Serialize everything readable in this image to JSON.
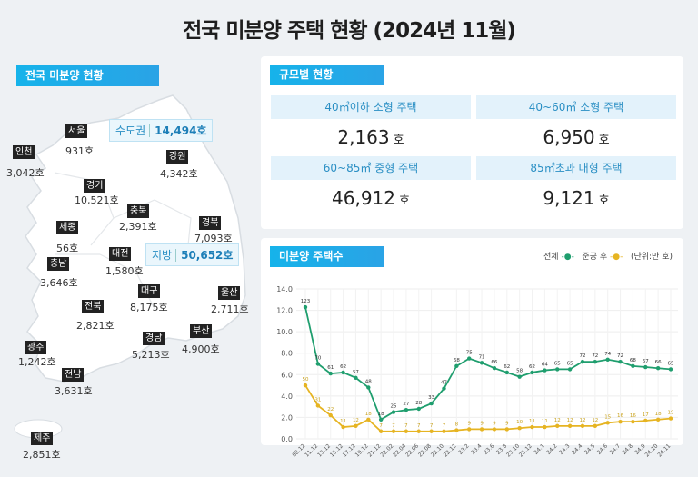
{
  "title": "전국 미분양 주택 현황 (2024년 11월)",
  "map_section": {
    "label": "전국 미분양 현황",
    "capital": {
      "name": "수도권",
      "value": "14,494호"
    },
    "regional": {
      "name": "지방",
      "value": "50,652호"
    },
    "regions": [
      {
        "name": "서울",
        "value": "931호"
      },
      {
        "name": "인천",
        "value": "3,042호"
      },
      {
        "name": "경기",
        "value": "10,521호"
      },
      {
        "name": "강원",
        "value": "4,342호"
      },
      {
        "name": "충북",
        "value": "2,391호"
      },
      {
        "name": "경북",
        "value": "7,093호"
      },
      {
        "name": "세종",
        "value": "56호"
      },
      {
        "name": "대전",
        "value": "1,580호"
      },
      {
        "name": "충남",
        "value": "3,646호"
      },
      {
        "name": "대구",
        "value": "8,175호"
      },
      {
        "name": "울산",
        "value": "2,711호"
      },
      {
        "name": "전북",
        "value": "2,821호"
      },
      {
        "name": "광주",
        "value": "1,242호"
      },
      {
        "name": "경남",
        "value": "5,213호"
      },
      {
        "name": "부산",
        "value": "4,900호"
      },
      {
        "name": "전남",
        "value": "3,631호"
      },
      {
        "name": "제주",
        "value": "2,851호"
      }
    ]
  },
  "size_section": {
    "label": "규모별 현황",
    "unit": "호",
    "items": [
      {
        "name": "40㎡이하 소형 주택",
        "value": "2,163"
      },
      {
        "name": "40~60㎡ 소형 주택",
        "value": "6,950"
      },
      {
        "name": "60~85㎡ 중형 주택",
        "value": "46,912"
      },
      {
        "name": "85㎡초과 대형 주택",
        "value": "9,121"
      }
    ]
  },
  "chart_section": {
    "label": "미분양 주택수",
    "legend_total": "전체",
    "legend_completed": "준공 후",
    "unit": "(단위:만 호)"
  },
  "chart_data": {
    "type": "line",
    "ylim": [
      0,
      14
    ],
    "yticks": [
      "0.0",
      "2.0",
      "4.0",
      "6.0",
      "8.0",
      "10.0",
      "12.0",
      "14.0"
    ],
    "grid": true,
    "legend": "top-right",
    "categories": [
      "08.12",
      "11.12",
      "13.12",
      "15.12",
      "17.12",
      "19.12",
      "21.12",
      "22.02",
      "22.04",
      "22.06",
      "22.08",
      "22.10",
      "22.12",
      "23.2",
      "23.4",
      "23.6",
      "23.8",
      "23.10",
      "23.12",
      "24.1",
      "24.2",
      "24.3",
      "24.4",
      "24.5",
      "24.6",
      "24.7",
      "24.8",
      "24.9",
      "24.10",
      "24.11"
    ],
    "series": [
      {
        "name": "전체",
        "color": "#1f9e6e",
        "values": [
          12.3,
          7.0,
          6.1,
          6.2,
          5.7,
          4.8,
          1.8,
          2.5,
          2.7,
          2.8,
          3.3,
          4.7,
          6.8,
          7.5,
          7.1,
          6.6,
          6.2,
          5.8,
          6.2,
          6.4,
          6.5,
          6.5,
          7.2,
          7.2,
          7.4,
          7.2,
          6.8,
          6.7,
          6.6,
          6.5
        ]
      },
      {
        "name": "준공 후",
        "color": "#e6b422",
        "values": [
          5.0,
          3.1,
          2.2,
          1.1,
          1.2,
          1.8,
          0.7,
          0.7,
          0.7,
          0.7,
          0.7,
          0.7,
          0.8,
          0.9,
          0.9,
          0.9,
          0.9,
          1.0,
          1.1,
          1.1,
          1.2,
          1.2,
          1.2,
          1.2,
          1.5,
          1.6,
          1.6,
          1.7,
          1.8,
          1.9
        ]
      }
    ]
  }
}
